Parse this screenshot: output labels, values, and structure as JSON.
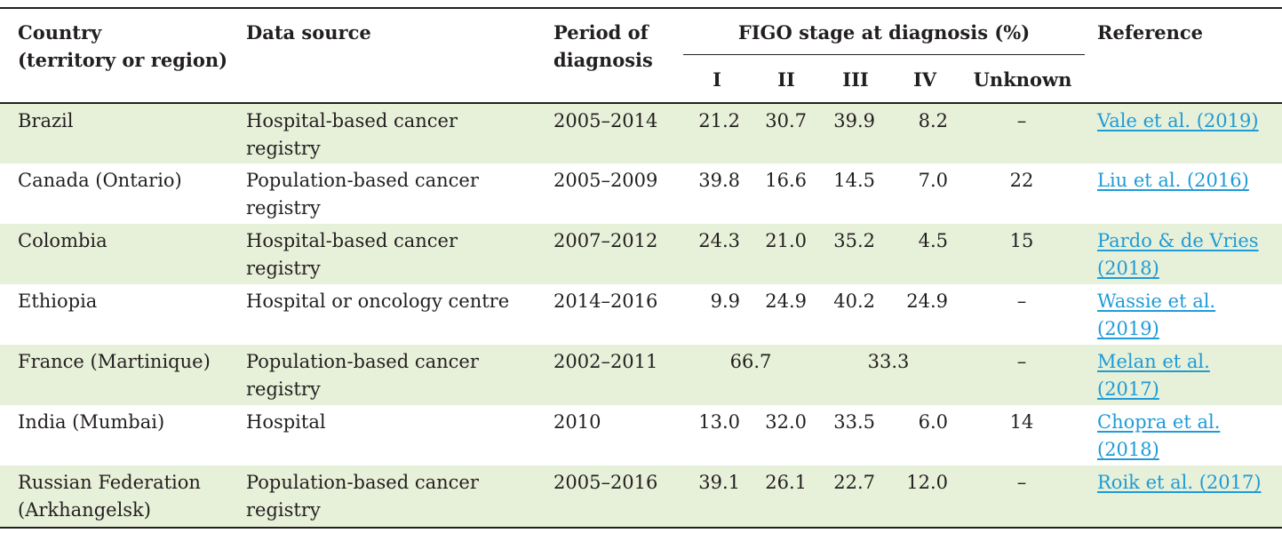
{
  "header": {
    "country": "Country\n(territory or region)",
    "source": "Data source",
    "period": "Period of\ndiagnosis",
    "figo": "FIGO stage at diagnosis (%)",
    "stage_i": "I",
    "stage_ii": "II",
    "stage_iii": "III",
    "stage_iv": "IV",
    "unknown": "Unknown",
    "reference": "Reference"
  },
  "colors": {
    "shade": "#e7f0d8",
    "link": "#1f9bd7",
    "text": "#231f20"
  },
  "rows": [
    {
      "country": "Brazil",
      "source": "Hospital-based cancer\nregistry",
      "period": "2005–2014",
      "i": "21.2",
      "ii": "30.7",
      "iii": "39.9",
      "iv": "8.2",
      "unknown": "–",
      "reference": "Vale et al. (2019)"
    },
    {
      "country": "Canada (Ontario)",
      "source": "Population-based cancer\nregistry",
      "period": "2005–2009",
      "i": "39.8",
      "ii": "16.6",
      "iii": "14.5",
      "iv": "7.0",
      "unknown": "22",
      "reference": "Liu et al. (2016)"
    },
    {
      "country": "Colombia",
      "source": "Hospital-based cancer\nregistry",
      "period": "2007–2012",
      "i": "24.3",
      "ii": "21.0",
      "iii": "35.2",
      "iv": "4.5",
      "unknown": "15",
      "reference": "Pardo & de Vries\n(2018)"
    },
    {
      "country": "Ethiopia",
      "source": "Hospital or oncology centre",
      "period": "2014–2016",
      "i": "9.9",
      "ii": "24.9",
      "iii": "40.2",
      "iv": "24.9",
      "unknown": "–",
      "reference": "Wassie et al.\n(2019)"
    },
    {
      "country": "France (Martinique)",
      "source": "Population-based cancer\nregistry",
      "period": "2002–2011",
      "i_ii": "66.7",
      "iii_iv": "33.3",
      "unknown": "–",
      "reference": "Melan et al.\n(2017)"
    },
    {
      "country": "India (Mumbai)",
      "source": "Hospital",
      "period": "2010",
      "i": "13.0",
      "ii": "32.0",
      "iii": "33.5",
      "iv": "6.0",
      "unknown": "14",
      "reference": "Chopra et al.\n(2018)"
    },
    {
      "country": "Russian Federation\n(Arkhangelsk)",
      "source": "Population-based cancer\nregistry",
      "period": "2005–2016",
      "i": "39.1",
      "ii": "26.1",
      "iii": "22.7",
      "iv": "12.0",
      "unknown": "–",
      "reference": "Roik et al. (2017)"
    }
  ]
}
